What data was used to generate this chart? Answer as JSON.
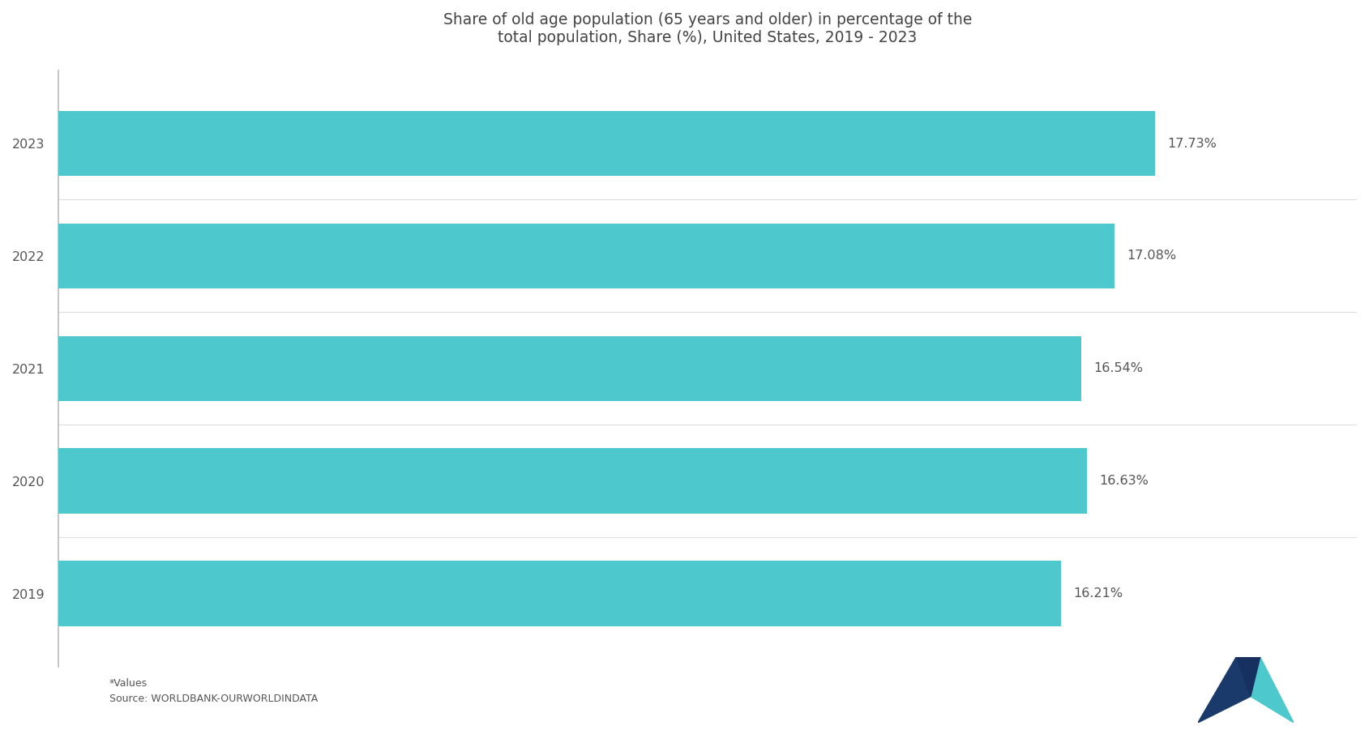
{
  "title": "Share of old age population (65 years and older) in percentage of the\ntotal population, Share (%), United States, 2019 - 2023",
  "categories": [
    "2023",
    "2022",
    "2021",
    "2020",
    "2019"
  ],
  "values": [
    17.73,
    17.08,
    16.54,
    16.63,
    16.21
  ],
  "labels": [
    "17.73%",
    "17.08%",
    "16.54%",
    "16.63%",
    "16.21%"
  ],
  "bar_color": "#4DC8CC",
  "bar_height": 0.58,
  "xlim": [
    0,
    21
  ],
  "background_color": "#ffffff",
  "plot_bg_color": "#ffffff",
  "text_color": "#555555",
  "title_color": "#444444",
  "axis_line_color": "#bbbbbb",
  "separator_color": "#dddddd",
  "label_fontsize": 11.5,
  "title_fontsize": 13.5,
  "tick_fontsize": 11.5,
  "footer_text": "*Values\nSource: WORLDBANK-OURWORLDINDATA",
  "footer_fontsize": 9,
  "logo_color_dark": "#1a3a6b",
  "logo_color_teal": "#4DC8CC",
  "logo_color_mid": "#163060"
}
